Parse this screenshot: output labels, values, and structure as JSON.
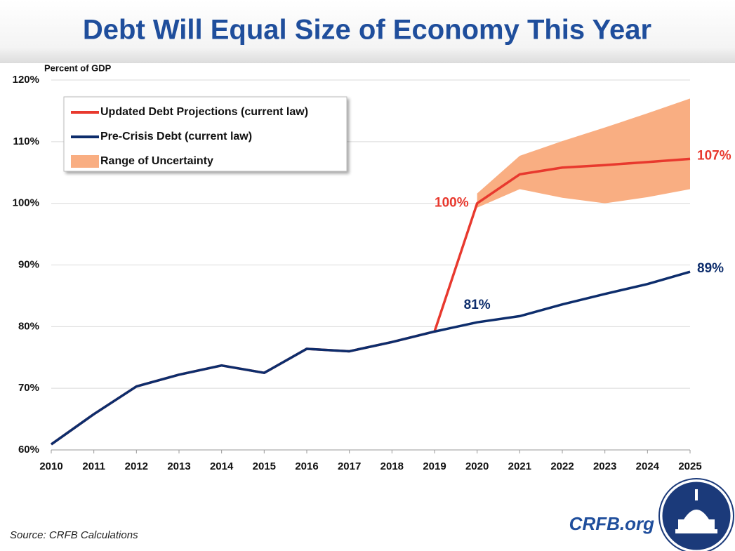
{
  "chart_data": {
    "type": "line",
    "title": "Debt Will Equal Size of Economy This Year",
    "y_label": "Percent of GDP",
    "source": "Source: CRFB Calculations",
    "brand": "CRFB.org",
    "x": [
      2010,
      2011,
      2012,
      2013,
      2014,
      2015,
      2016,
      2017,
      2018,
      2019,
      2020,
      2021,
      2022,
      2023,
      2024,
      2025
    ],
    "xlim": [
      2010,
      2025
    ],
    "xticks": [
      2010,
      2011,
      2012,
      2013,
      2014,
      2015,
      2016,
      2017,
      2018,
      2019,
      2020,
      2021,
      2022,
      2023,
      2024,
      2025
    ],
    "ylim": [
      60,
      120
    ],
    "yticks": [
      {
        "value": 60,
        "label": "60%"
      },
      {
        "value": 70,
        "label": "70%"
      },
      {
        "value": 80,
        "label": "80%"
      },
      {
        "value": 90,
        "label": "90%"
      },
      {
        "value": 100,
        "label": "100%"
      },
      {
        "value": 110,
        "label": "110%"
      },
      {
        "value": 120,
        "label": "120%"
      }
    ],
    "grid": true,
    "series": [
      {
        "name": "Updated Debt Projections (current law)",
        "color": "#e8392e",
        "values": [
          60.9,
          65.8,
          70.3,
          72.2,
          73.7,
          72.5,
          76.4,
          76.0,
          77.5,
          79.2,
          100.0,
          104.7,
          105.8,
          106.2,
          106.7,
          107.2
        ],
        "value_labels": [
          null,
          null,
          null,
          null,
          null,
          null,
          null,
          null,
          null,
          null,
          "100%",
          null,
          null,
          null,
          null,
          "107%"
        ]
      },
      {
        "name": "Pre-Crisis Debt (current law)",
        "color": "#0d2d6c",
        "values": [
          60.9,
          65.8,
          70.3,
          72.2,
          73.7,
          72.5,
          76.4,
          76.0,
          77.5,
          79.2,
          80.7,
          81.7,
          83.6,
          85.3,
          86.9,
          88.9
        ],
        "value_labels": [
          null,
          null,
          null,
          null,
          null,
          null,
          null,
          null,
          null,
          null,
          "81%",
          null,
          null,
          null,
          null,
          "89%"
        ]
      }
    ],
    "band": {
      "name": "Range of Uncertainty",
      "color": "#f9ae82",
      "low": [
        null,
        null,
        null,
        null,
        null,
        null,
        null,
        null,
        null,
        null,
        99.3,
        102.3,
        100.9,
        100.0,
        101.0,
        102.3
      ],
      "high": [
        null,
        null,
        null,
        null,
        null,
        null,
        null,
        null,
        null,
        null,
        101.6,
        107.7,
        110.1,
        112.3,
        114.6,
        117.0
      ]
    }
  }
}
